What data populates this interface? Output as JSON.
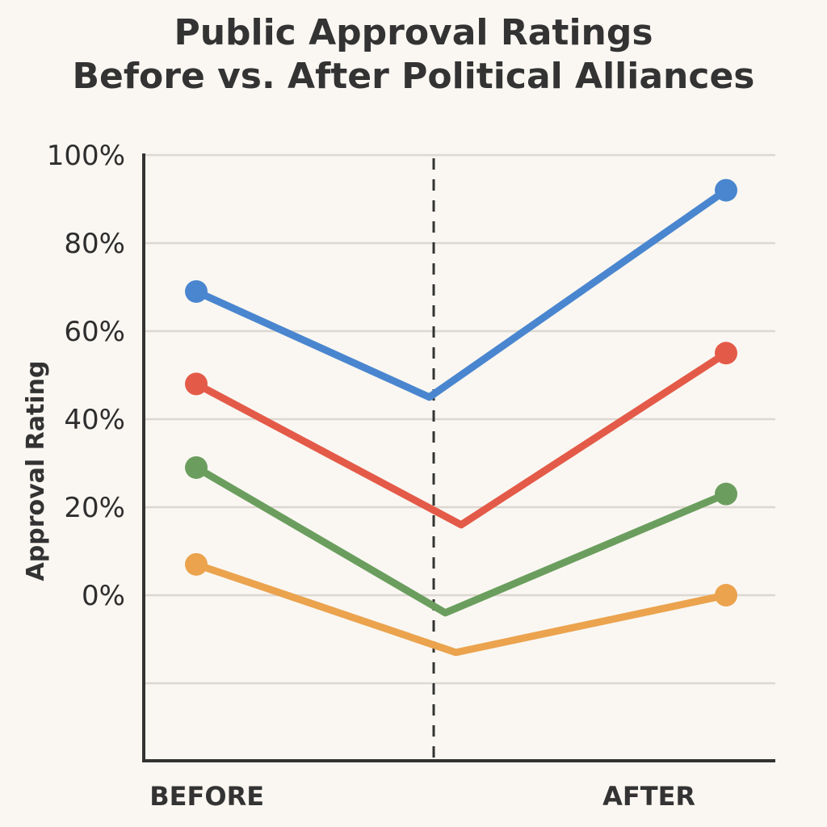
{
  "chart_data": {
    "type": "line",
    "title": [
      "Public Approval Ratings",
      "Before vs. After Political Alliances"
    ],
    "ylabel": "Approval Rating",
    "xlabel": "",
    "y_ticks": [
      "0%",
      "20%",
      "40%",
      "60%",
      "80%",
      "100%"
    ],
    "ylim": [
      -38,
      100
    ],
    "grid": true,
    "x": [
      0,
      0.45,
      1
    ],
    "x_categories": [
      {
        "label": "BEFORE",
        "x": 0.1
      },
      {
        "label": "AFTER",
        "x": 0.8
      }
    ],
    "divider_x": 0.5,
    "series": [
      {
        "color": "#4a86cf",
        "points": [
          [
            0,
            69
          ],
          [
            0.44,
            45
          ],
          [
            1,
            92
          ]
        ],
        "markers": [
          0,
          2
        ]
      },
      {
        "color": "#e45a48",
        "points": [
          [
            0,
            48
          ],
          [
            0.5,
            16
          ],
          [
            1,
            55
          ]
        ],
        "markers": [
          0,
          2
        ]
      },
      {
        "color": "#6b9e5e",
        "points": [
          [
            0,
            29
          ],
          [
            0.47,
            -4
          ],
          [
            1,
            23
          ]
        ],
        "markers": [
          0,
          2
        ]
      },
      {
        "color": "#eba34e",
        "points": [
          [
            0,
            7
          ],
          [
            0.49,
            -13
          ],
          [
            1,
            0
          ]
        ],
        "markers": [
          0,
          2
        ]
      }
    ],
    "legend": "none"
  }
}
